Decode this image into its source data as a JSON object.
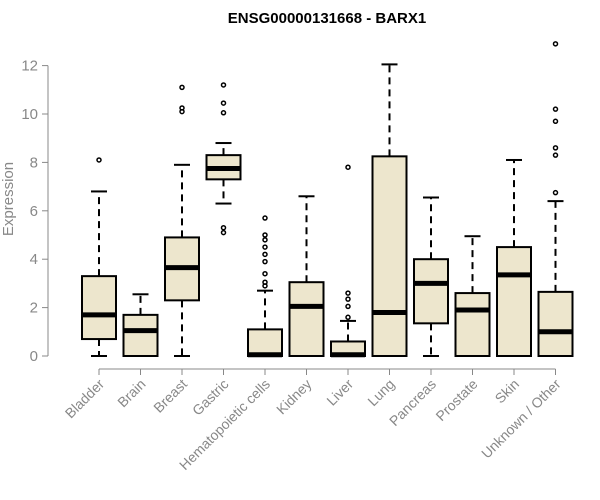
{
  "chart_data": {
    "type": "boxplot",
    "title": "ENSG00000131668 - BARX1",
    "xlabel": "",
    "ylabel": "Expression",
    "ylim": [
      0,
      12.5
    ],
    "yticks": [
      0,
      2,
      4,
      6,
      8,
      10,
      12
    ],
    "grid": false,
    "legend": "none",
    "box_fill": "#ede6cd",
    "categories": [
      "Bladder",
      "Brain",
      "Breast",
      "Gastric",
      "Hematopoietic cells",
      "Kidney",
      "Liver",
      "Lung",
      "Pancreas",
      "Prostate",
      "Skin",
      "Unknown / Other"
    ],
    "boxes": [
      {
        "whisker_low": 0.0,
        "q1": 0.7,
        "median": 1.7,
        "q3": 3.3,
        "whisker_high": 6.8,
        "outliers": [
          8.1
        ]
      },
      {
        "whisker_low": 0.0,
        "q1": 0.0,
        "median": 1.05,
        "q3": 1.7,
        "whisker_high": 2.55,
        "outliers": []
      },
      {
        "whisker_low": 0.0,
        "q1": 2.3,
        "median": 3.65,
        "q3": 4.9,
        "whisker_high": 7.9,
        "outliers": [
          10.1,
          10.25,
          11.1
        ]
      },
      {
        "whisker_low": 6.3,
        "q1": 7.3,
        "median": 7.75,
        "q3": 8.3,
        "whisker_high": 8.8,
        "outliers": [
          5.1,
          5.3,
          10.05,
          10.45,
          11.2
        ]
      },
      {
        "whisker_low": 0.0,
        "q1": 0.0,
        "median": 0.05,
        "q3": 1.1,
        "whisker_high": 2.7,
        "outliers": [
          2.9,
          3.05,
          3.4,
          3.9,
          4.2,
          4.5,
          4.8,
          5.0,
          5.7
        ]
      },
      {
        "whisker_low": 0.0,
        "q1": 0.0,
        "median": 2.05,
        "q3": 3.05,
        "whisker_high": 6.6,
        "outliers": []
      },
      {
        "whisker_low": 0.0,
        "q1": 0.0,
        "median": 0.05,
        "q3": 0.6,
        "whisker_high": 1.45,
        "outliers": [
          1.6,
          2.05,
          2.35,
          2.6,
          7.8
        ]
      },
      {
        "whisker_low": 0.0,
        "q1": 0.0,
        "median": 1.8,
        "q3": 8.25,
        "whisker_high": 12.05,
        "outliers": []
      },
      {
        "whisker_low": 0.0,
        "q1": 1.35,
        "median": 3.0,
        "q3": 4.0,
        "whisker_high": 6.55,
        "outliers": []
      },
      {
        "whisker_low": 0.0,
        "q1": 0.0,
        "median": 1.9,
        "q3": 2.6,
        "whisker_high": 4.95,
        "outliers": []
      },
      {
        "whisker_low": 0.0,
        "q1": 0.0,
        "median": 3.35,
        "q3": 4.5,
        "whisker_high": 8.1,
        "outliers": []
      },
      {
        "whisker_low": 0.0,
        "q1": 0.0,
        "median": 1.0,
        "q3": 2.65,
        "whisker_high": 6.4,
        "outliers": [
          6.75,
          8.3,
          8.6,
          9.7,
          10.2,
          12.9
        ]
      }
    ]
  }
}
